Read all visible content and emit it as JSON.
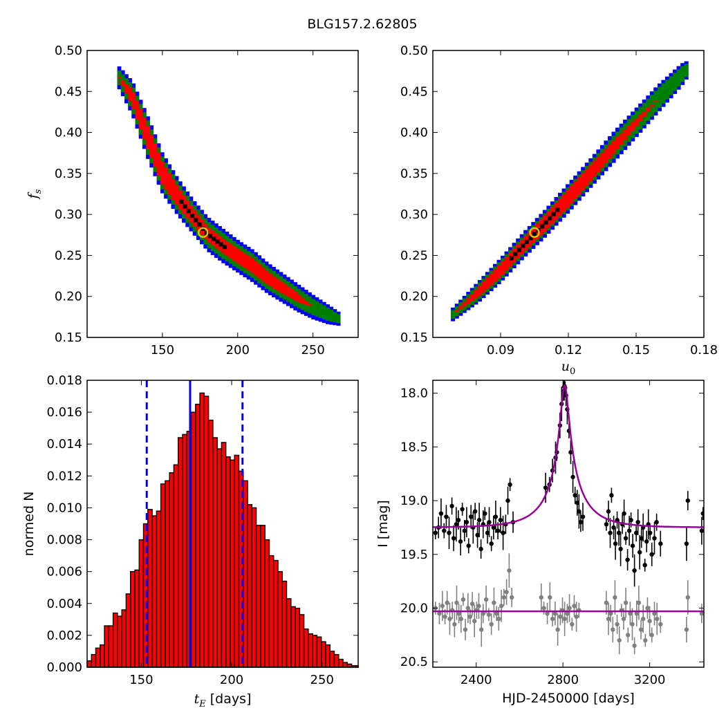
{
  "title": "BLG157.2.62805",
  "colors": {
    "sigma1": "#000000",
    "sigma2": "#ff0000",
    "sigma3": "#008000",
    "sigma4": "#0000ff",
    "best_fit_marker": "#cccc00",
    "hist_fill": "#ff0000",
    "model": "#990099",
    "lc_primary": "#000000",
    "lc_residual": "#808080"
  },
  "chart_data": [
    {
      "id": "tE_vs_fs",
      "type": "heatmap",
      "xlabel": "",
      "ylabel": "f_s",
      "xlim": [
        100,
        280
      ],
      "ylim": [
        0.15,
        0.5
      ],
      "xticks": [
        "150",
        "200",
        "250"
      ],
      "yticks": [
        "0.15",
        "0.20",
        "0.25",
        "0.30",
        "0.35",
        "0.40",
        "0.45",
        "0.50"
      ],
      "best_fit": {
        "x": 177,
        "y": 0.278
      },
      "band": {
        "comment": "",
        "x": [
          120,
          130,
          140,
          150,
          160,
          170,
          180,
          190,
          200,
          210,
          220,
          230,
          240,
          250,
          260,
          268
        ],
        "y": [
          0.47,
          0.442,
          0.395,
          0.35,
          0.322,
          0.298,
          0.276,
          0.262,
          0.249,
          0.237,
          0.222,
          0.21,
          0.198,
          0.187,
          0.178,
          0.172
        ],
        "w_sigma2": [
          0.0,
          0.01,
          0.014,
          0.014,
          0.012,
          0.01,
          0.009,
          0.009,
          0.009,
          0.009,
          0.008,
          0.007,
          0.005,
          0.0,
          0.0,
          0.0
        ],
        "w_sigma3": [
          0.008,
          0.016,
          0.021,
          0.02,
          0.018,
          0.016,
          0.016,
          0.016,
          0.015,
          0.015,
          0.014,
          0.013,
          0.012,
          0.01,
          0.008,
          0.005
        ],
        "w_sigma4": [
          0.013,
          0.021,
          0.026,
          0.025,
          0.023,
          0.021,
          0.021,
          0.021,
          0.02,
          0.02,
          0.019,
          0.018,
          0.017,
          0.015,
          0.012,
          0.008
        ]
      }
    },
    {
      "id": "u0_vs_fs",
      "type": "heatmap",
      "xlabel": "u_0",
      "ylabel": "",
      "xlim": [
        0.06,
        0.18
      ],
      "ylim": [
        0.15,
        0.5
      ],
      "xticks": [
        "0.09",
        "0.12",
        "0.15",
        "0.18"
      ],
      "yticks": [
        "0.15",
        "0.20",
        "0.25",
        "0.30",
        "0.35",
        "0.40",
        "0.45",
        "0.50"
      ],
      "best_fit": {
        "x": 0.105,
        "y": 0.278
      },
      "band": {
        "x": [
          0.068,
          0.08,
          0.09,
          0.1,
          0.11,
          0.12,
          0.13,
          0.14,
          0.15,
          0.16,
          0.17,
          0.173
        ],
        "y": [
          0.176,
          0.205,
          0.232,
          0.262,
          0.29,
          0.32,
          0.351,
          0.382,
          0.412,
          0.442,
          0.47,
          0.478
        ],
        "w_sigma2": [
          0.0,
          0.006,
          0.008,
          0.009,
          0.01,
          0.011,
          0.01,
          0.008,
          0.005,
          0.0,
          0.0,
          0.0
        ],
        "w_sigma3": [
          0.005,
          0.01,
          0.012,
          0.012,
          0.013,
          0.014,
          0.014,
          0.014,
          0.014,
          0.013,
          0.01,
          0.007
        ],
        "w_sigma4": [
          0.008,
          0.013,
          0.015,
          0.016,
          0.017,
          0.018,
          0.018,
          0.019,
          0.018,
          0.017,
          0.014,
          0.01
        ]
      }
    },
    {
      "id": "tE_histogram",
      "type": "bar",
      "xlabel": "t_E [days]",
      "ylabel": "normed N",
      "xlim": [
        120,
        270
      ],
      "ylim": [
        0.0,
        0.018
      ],
      "xticks": [
        "150",
        "200",
        "250"
      ],
      "yticks": [
        "0.000",
        "0.002",
        "0.004",
        "0.006",
        "0.008",
        "0.010",
        "0.012",
        "0.014",
        "0.016",
        "0.018"
      ],
      "bin_width": 2.4,
      "x_start": 120,
      "values": [
        0.0004,
        0.0008,
        0.0012,
        0.0014,
        0.0026,
        0.0026,
        0.0034,
        0.0032,
        0.0036,
        0.0046,
        0.006,
        0.0061,
        0.008,
        0.009,
        0.0099,
        0.0095,
        0.0098,
        0.0115,
        0.0117,
        0.0122,
        0.0127,
        0.0144,
        0.0146,
        0.0148,
        0.016,
        0.0165,
        0.0172,
        0.017,
        0.0155,
        0.0144,
        0.0137,
        0.0141,
        0.0132,
        0.013,
        0.0133,
        0.0123,
        0.0117,
        0.0102,
        0.01,
        0.0089,
        0.0089,
        0.008,
        0.007,
        0.0067,
        0.006,
        0.0054,
        0.0043,
        0.0038,
        0.0037,
        0.0033,
        0.0024,
        0.0021,
        0.002,
        0.0019,
        0.0016,
        0.0014,
        0.001,
        0.0008,
        0.0005,
        0.0003,
        0.0002,
        0.0001,
        0.0001,
        0.0001,
        0.0001
      ],
      "median": 177,
      "lower": 153,
      "upper": 206
    },
    {
      "id": "light_curve",
      "type": "scatter",
      "xlabel": "HJD-2450000 [days]",
      "ylabel": "I [mag]",
      "xlim": [
        2200,
        3450
      ],
      "ylim": [
        20.55,
        17.88
      ],
      "xticks": [
        "2400",
        "2800",
        "3200"
      ],
      "yticks": [
        "18.0",
        "18.5",
        "19.0",
        "19.5",
        "20.0",
        "20.5"
      ],
      "model": {
        "t0": 2808,
        "tE": 177,
        "u0": 0.105,
        "baseline": 19.25,
        "residual_baseline": 20.03
      },
      "primary_points": [
        [
          2212,
          19.3
        ],
        [
          2226,
          19.25
        ],
        [
          2238,
          19.12
        ],
        [
          2252,
          19.28
        ],
        [
          2262,
          19.15
        ],
        [
          2275,
          19.3
        ],
        [
          2288,
          19.05
        ],
        [
          2296,
          19.35
        ],
        [
          2308,
          19.22
        ],
        [
          2318,
          19.18
        ],
        [
          2328,
          19.38
        ],
        [
          2336,
          19.08
        ],
        [
          2346,
          19.28
        ],
        [
          2356,
          19.2
        ],
        [
          2365,
          19.42
        ],
        [
          2376,
          19.15
        ],
        [
          2386,
          19.25
        ],
        [
          2395,
          19.1
        ],
        [
          2406,
          19.32
        ],
        [
          2414,
          19.18
        ],
        [
          2422,
          19.45
        ],
        [
          2432,
          19.22
        ],
        [
          2440,
          19.12
        ],
        [
          2452,
          19.3
        ],
        [
          2460,
          19.2
        ],
        [
          2470,
          19.4
        ],
        [
          2480,
          19.25
        ],
        [
          2490,
          19.15
        ],
        [
          2500,
          19.28
        ],
        [
          2512,
          19.18
        ],
        [
          2524,
          19.3
        ],
        [
          2536,
          19.22
        ],
        [
          2546,
          19.0
        ],
        [
          2556,
          18.85
        ],
        [
          2570,
          19.2
        ],
        [
          2720,
          18.88
        ],
        [
          2738,
          18.85
        ],
        [
          2752,
          18.72
        ],
        [
          2766,
          18.6
        ],
        [
          2772,
          18.55
        ],
        [
          2786,
          18.3
        ],
        [
          2794,
          18.1
        ],
        [
          2802,
          17.98
        ],
        [
          2806,
          17.94
        ],
        [
          2810,
          17.95
        ],
        [
          2814,
          18.02
        ],
        [
          2820,
          18.15
        ],
        [
          2828,
          18.35
        ],
        [
          2836,
          18.55
        ],
        [
          2846,
          18.78
        ],
        [
          2856,
          18.95
        ],
        [
          2866,
          19.02
        ],
        [
          2874,
          19.1
        ],
        [
          2882,
          19.2
        ],
        [
          2892,
          19.15
        ],
        [
          3000,
          19.22
        ],
        [
          3010,
          19.1
        ],
        [
          3018,
          19.3
        ],
        [
          3024,
          18.95
        ],
        [
          3034,
          19.25
        ],
        [
          3042,
          19.4
        ],
        [
          3050,
          19.18
        ],
        [
          3058,
          19.3
        ],
        [
          3066,
          19.45
        ],
        [
          3074,
          19.22
        ],
        [
          3082,
          19.12
        ],
        [
          3090,
          19.35
        ],
        [
          3098,
          19.55
        ],
        [
          3106,
          19.28
        ],
        [
          3114,
          19.18
        ],
        [
          3122,
          19.42
        ],
        [
          3130,
          19.65
        ],
        [
          3138,
          19.3
        ],
        [
          3146,
          19.2
        ],
        [
          3154,
          19.48
        ],
        [
          3162,
          19.35
        ],
        [
          3170,
          19.25
        ],
        [
          3178,
          19.6
        ],
        [
          3186,
          19.38
        ],
        [
          3194,
          19.22
        ],
        [
          3202,
          19.3
        ],
        [
          3210,
          19.5
        ],
        [
          3222,
          19.35
        ],
        [
          3232,
          19.2
        ],
        [
          3250,
          19.4
        ],
        [
          3370,
          19.4
        ],
        [
          3376,
          19.0
        ],
        [
          3440,
          19.28
        ],
        [
          3446,
          19.12
        ]
      ],
      "residual_points": [
        [
          2212,
          20.0
        ],
        [
          2230,
          20.05
        ],
        [
          2244,
          19.98
        ],
        [
          2256,
          20.08
        ],
        [
          2266,
          19.95
        ],
        [
          2278,
          20.1
        ],
        [
          2290,
          20.02
        ],
        [
          2300,
          20.15
        ],
        [
          2310,
          19.95
        ],
        [
          2320,
          20.05
        ],
        [
          2330,
          20.1
        ],
        [
          2340,
          19.92
        ],
        [
          2350,
          20.2
        ],
        [
          2362,
          20.0
        ],
        [
          2372,
          20.08
        ],
        [
          2382,
          19.96
        ],
        [
          2392,
          20.12
        ],
        [
          2402,
          20.02
        ],
        [
          2412,
          19.98
        ],
        [
          2424,
          20.2
        ],
        [
          2432,
          20.05
        ],
        [
          2446,
          19.92
        ],
        [
          2458,
          20.06
        ],
        [
          2470,
          20.15
        ],
        [
          2482,
          19.95
        ],
        [
          2494,
          20.05
        ],
        [
          2504,
          20.1
        ],
        [
          2516,
          19.98
        ],
        [
          2528,
          19.9
        ],
        [
          2540,
          19.85
        ],
        [
          2552,
          19.65
        ],
        [
          2564,
          19.9
        ],
        [
          2700,
          19.9
        ],
        [
          2712,
          20.0
        ],
        [
          2728,
          20.05
        ],
        [
          2740,
          19.9
        ],
        [
          2752,
          20.1
        ],
        [
          2764,
          20.05
        ],
        [
          2776,
          20.2
        ],
        [
          2788,
          20.08
        ],
        [
          2798,
          20.02
        ],
        [
          2808,
          20.1
        ],
        [
          2820,
          20.05
        ],
        [
          2830,
          20.0
        ],
        [
          2842,
          20.15
        ],
        [
          2852,
          19.98
        ],
        [
          2862,
          20.08
        ],
        [
          2874,
          20.02
        ],
        [
          3000,
          19.95
        ],
        [
          3010,
          20.1
        ],
        [
          3020,
          20.05
        ],
        [
          3030,
          20.2
        ],
        [
          3040,
          19.9
        ],
        [
          3050,
          20.15
        ],
        [
          3060,
          20.3
        ],
        [
          3070,
          20.02
        ],
        [
          3080,
          20.1
        ],
        [
          3090,
          19.95
        ],
        [
          3100,
          20.25
        ],
        [
          3110,
          20.05
        ],
        [
          3120,
          20.15
        ],
        [
          3130,
          20.35
        ],
        [
          3140,
          20.05
        ],
        [
          3150,
          19.95
        ],
        [
          3160,
          20.2
        ],
        [
          3170,
          20.1
        ],
        [
          3180,
          20.3
        ],
        [
          3190,
          20.0
        ],
        [
          3200,
          20.12
        ],
        [
          3210,
          20.25
        ],
        [
          3222,
          20.05
        ],
        [
          3234,
          20.1
        ],
        [
          3250,
          20.15
        ],
        [
          3370,
          20.2
        ],
        [
          3376,
          19.9
        ],
        [
          3440,
          20.05
        ]
      ]
    }
  ]
}
